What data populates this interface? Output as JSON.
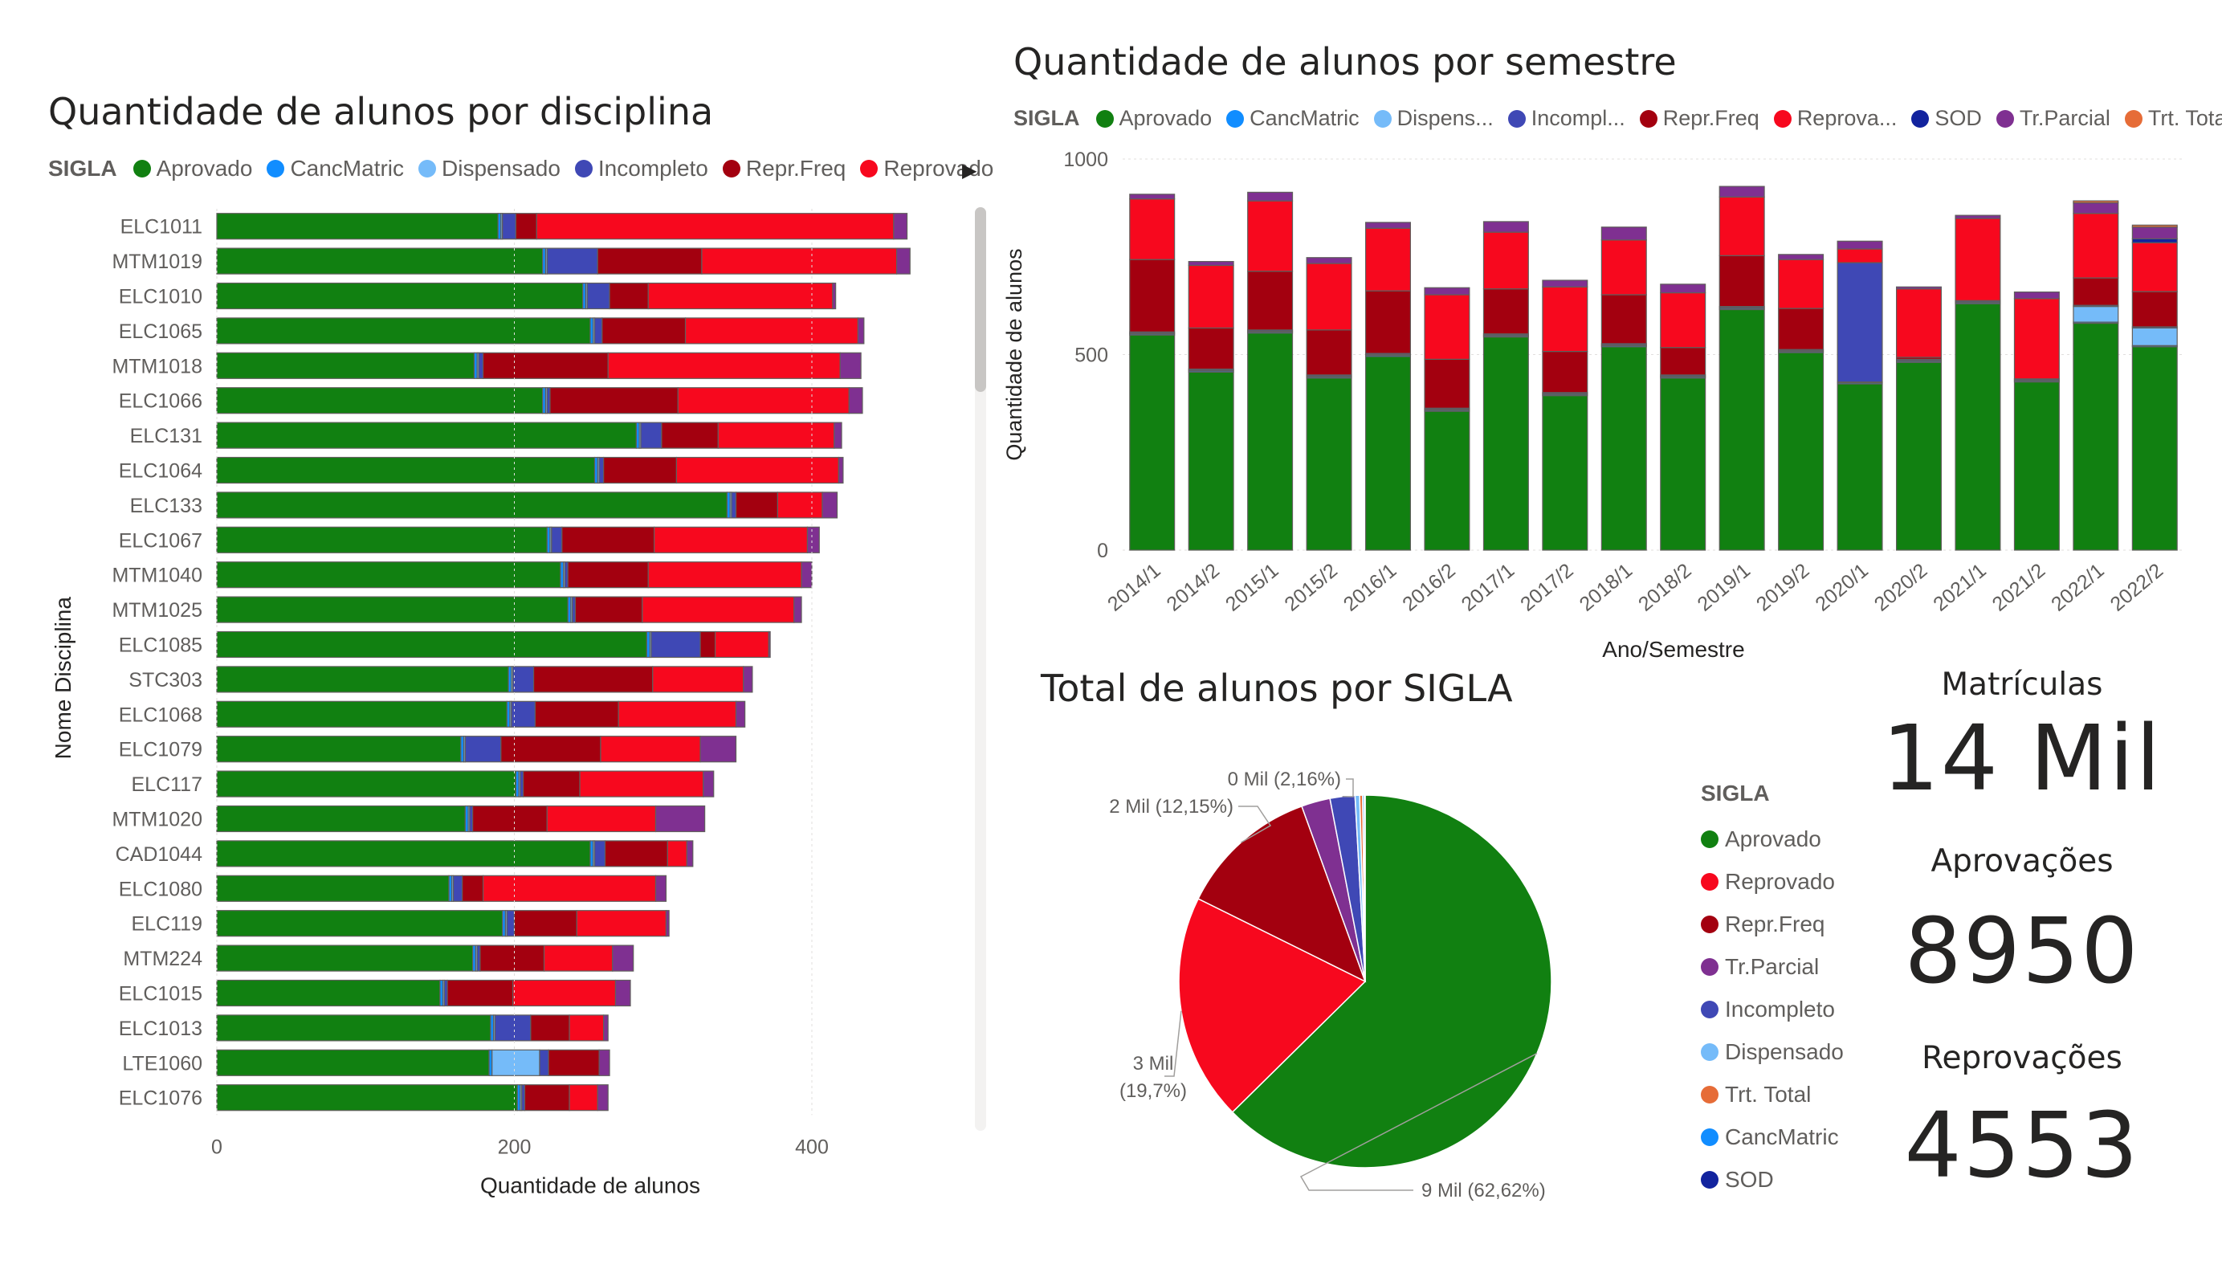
{
  "colors": {
    "Aprovado": "#118011",
    "CancMatric": "#118DFF",
    "Dispensado": "#75BBF9",
    "Incompleto": "#3F48B5",
    "Repr.Freq": "#A3000F",
    "Reprovado": "#F7081E",
    "SOD": "#12239E",
    "Tr.Parcial": "#7F3091",
    "Trt. Total": "#E66C37",
    "bar_border": "#605E5C"
  },
  "left_chart": {
    "title": "Quantidade de alunos por disciplina",
    "legend_title": "SIGLA",
    "legend": [
      {
        "key": "Aprovado",
        "label": "Aprovado"
      },
      {
        "key": "CancMatric",
        "label": "CancMatric"
      },
      {
        "key": "Dispensado",
        "label": "Dispensado"
      },
      {
        "key": "Incompleto",
        "label": "Incompleto"
      },
      {
        "key": "Repr.Freq",
        "label": "Repr.Freq"
      },
      {
        "key": "Reprovado",
        "label": "Reprovado"
      }
    ]
  },
  "top_chart": {
    "title": "Quantidade de alunos por semestre",
    "legend_title": "SIGLA",
    "legend": [
      {
        "key": "Aprovado",
        "label": "Aprovado"
      },
      {
        "key": "CancMatric",
        "label": "CancMatric"
      },
      {
        "key": "Dispensado",
        "label": "Dispens..."
      },
      {
        "key": "Incompleto",
        "label": "Incompl..."
      },
      {
        "key": "Repr.Freq",
        "label": "Repr.Freq"
      },
      {
        "key": "Reprovado",
        "label": "Reprova..."
      },
      {
        "key": "SOD",
        "label": "SOD"
      },
      {
        "key": "Tr.Parcial",
        "label": "Tr.Parcial"
      },
      {
        "key": "Trt. Total",
        "label": "Trt. Total"
      }
    ]
  },
  "pie_chart": {
    "title": "Total de alunos por SIGLA",
    "legend_title": "SIGLA",
    "legend": [
      {
        "key": "Aprovado",
        "label": "Aprovado"
      },
      {
        "key": "Reprovado",
        "label": "Reprovado"
      },
      {
        "key": "Repr.Freq",
        "label": "Repr.Freq"
      },
      {
        "key": "Tr.Parcial",
        "label": "Tr.Parcial"
      },
      {
        "key": "Incompleto",
        "label": "Incompleto"
      },
      {
        "key": "Dispensado",
        "label": "Dispensado"
      },
      {
        "key": "Trt. Total",
        "label": "Trt. Total"
      },
      {
        "key": "CancMatric",
        "label": "CancMatric"
      },
      {
        "key": "SOD",
        "label": "SOD"
      }
    ]
  },
  "kpis": [
    {
      "label": "Matrículas",
      "value": "14 Mil"
    },
    {
      "label": "Aprovações",
      "value": "8950"
    },
    {
      "label": "Reprovações",
      "value": "4553"
    }
  ],
  "chart_data": [
    {
      "type": "bar",
      "orientation": "horizontal",
      "stacked": true,
      "title": "Quantidade de alunos por disciplina",
      "xlabel": "Quantidade de alunos",
      "ylabel": "Nome Disciplina",
      "xlim": [
        0,
        470
      ],
      "xticks": [
        0,
        200,
        400
      ],
      "legend_position": "top",
      "categories": [
        "ELC1011",
        "MTM1019",
        "ELC1010",
        "ELC1065",
        "MTM1018",
        "ELC1066",
        "ELC131",
        "ELC1064",
        "ELC133",
        "ELC1067",
        "MTM1040",
        "MTM1025",
        "ELC1085",
        "STC303",
        "ELC1068",
        "ELC1079",
        "ELC117",
        "MTM1020",
        "CAD1044",
        "ELC1080",
        "ELC119",
        "MTM224",
        "ELC1015",
        "ELC1013",
        "LTE1060",
        "ELC1076"
      ],
      "series": [
        {
          "name": "Aprovado",
          "values": [
            189,
            219,
            246,
            251,
            173,
            219,
            282,
            254,
            343,
            222,
            231,
            236,
            289,
            196,
            195,
            164,
            201,
            167,
            251,
            156,
            192,
            172,
            150,
            184,
            183,
            202
          ]
        },
        {
          "name": "CancMatric",
          "values": [
            2,
            2,
            2,
            2,
            2,
            2,
            2,
            2,
            2,
            2,
            2,
            2,
            2,
            2,
            2,
            2,
            2,
            2,
            2,
            2,
            2,
            2,
            2,
            2,
            2,
            2
          ]
        },
        {
          "name": "Dispensado",
          "values": [
            1,
            1,
            1,
            1,
            1,
            1,
            1,
            1,
            1,
            1,
            1,
            1,
            1,
            1,
            1,
            1,
            1,
            1,
            1,
            1,
            1,
            1,
            1,
            1,
            32,
            1
          ]
        },
        {
          "name": "Incompleto",
          "values": [
            9,
            34,
            15,
            5,
            3,
            2,
            14,
            3,
            3,
            7,
            2,
            2,
            33,
            14,
            16,
            24,
            2,
            2,
            7,
            6,
            5,
            2,
            2,
            24,
            6,
            2
          ]
        },
        {
          "name": "Repr.Freq",
          "values": [
            14,
            70,
            26,
            56,
            84,
            86,
            38,
            49,
            28,
            62,
            54,
            45,
            10,
            80,
            56,
            67,
            38,
            50,
            42,
            14,
            42,
            43,
            44,
            26,
            34,
            30
          ]
        },
        {
          "name": "Reprovado",
          "values": [
            240,
            131,
            124,
            116,
            156,
            115,
            78,
            109,
            30,
            103,
            103,
            102,
            36,
            61,
            79,
            67,
            83,
            73,
            13,
            116,
            60,
            46,
            69,
            23,
            0,
            19
          ]
        },
        {
          "name": "Tr.Parcial",
          "values": [
            9,
            9,
            2,
            4,
            14,
            9,
            5,
            3,
            10,
            8,
            7,
            5,
            1,
            6,
            6,
            24,
            7,
            33,
            4,
            7,
            2,
            14,
            10,
            3,
            7,
            7
          ]
        }
      ]
    },
    {
      "type": "bar",
      "orientation": "vertical",
      "stacked": true,
      "title": "Quantidade de alunos por semestre",
      "xlabel": "Ano/Semestre",
      "ylabel": "Quantidade de alunos",
      "ylim": [
        0,
        1000
      ],
      "yticks": [
        0,
        500,
        1000
      ],
      "legend_position": "top",
      "categories": [
        "2014/1",
        "2014/2",
        "2015/1",
        "2015/2",
        "2016/1",
        "2016/2",
        "2017/1",
        "2017/2",
        "2018/1",
        "2018/2",
        "2019/1",
        "2019/2",
        "2020/1",
        "2020/2",
        "2021/1",
        "2021/2",
        "2022/1",
        "2022/2"
      ],
      "series": [
        {
          "name": "Aprovado",
          "values": [
            550,
            455,
            555,
            440,
            495,
            355,
            545,
            395,
            520,
            440,
            615,
            505,
            425,
            480,
            630,
            430,
            580,
            520
          ]
        },
        {
          "name": "CancMatric",
          "values": [
            3,
            3,
            3,
            3,
            3,
            3,
            3,
            3,
            3,
            3,
            3,
            3,
            3,
            3,
            3,
            3,
            3,
            3
          ]
        },
        {
          "name": "Dispensado",
          "values": [
            2,
            2,
            2,
            2,
            2,
            2,
            2,
            2,
            2,
            2,
            2,
            2,
            2,
            2,
            2,
            2,
            40,
            45
          ]
        },
        {
          "name": "Incompleto",
          "values": [
            3,
            3,
            3,
            3,
            3,
            3,
            3,
            3,
            3,
            3,
            3,
            3,
            305,
            3,
            3,
            3,
            3,
            3
          ]
        },
        {
          "name": "Repr.Freq",
          "values": [
            185,
            105,
            150,
            115,
            160,
            125,
            115,
            105,
            125,
            70,
            130,
            105,
            0,
            5,
            0,
            0,
            70,
            90
          ]
        },
        {
          "name": "Reprovado",
          "values": [
            155,
            160,
            180,
            170,
            160,
            165,
            145,
            165,
            140,
            140,
            150,
            125,
            35,
            175,
            210,
            205,
            165,
            125
          ]
        },
        {
          "name": "SOD",
          "values": [
            0,
            0,
            0,
            0,
            0,
            0,
            0,
            0,
            0,
            0,
            0,
            0,
            0,
            0,
            0,
            0,
            0,
            10
          ]
        },
        {
          "name": "Tr.Parcial",
          "values": [
            12,
            10,
            22,
            15,
            15,
            18,
            27,
            17,
            33,
            22,
            27,
            13,
            20,
            5,
            8,
            17,
            27,
            30
          ]
        },
        {
          "name": "Trt. Total",
          "values": [
            0,
            0,
            0,
            0,
            0,
            0,
            0,
            0,
            0,
            0,
            0,
            0,
            0,
            0,
            0,
            0,
            5,
            5
          ]
        }
      ]
    },
    {
      "type": "pie",
      "title": "Total de alunos por SIGLA",
      "legend_position": "right",
      "slices": [
        {
          "name": "Aprovado",
          "value": 62.62,
          "label": "9 Mil (62,62%)"
        },
        {
          "name": "Reprovado",
          "value": 19.7,
          "label": "3 Mil (19,7%)"
        },
        {
          "name": "Repr.Freq",
          "value": 12.15,
          "label": "2 Mil (12,15%)"
        },
        {
          "name": "Tr.Parcial",
          "value": 2.5
        },
        {
          "name": "Incompleto",
          "value": 2.16,
          "label": "0 Mil (2,16%)"
        },
        {
          "name": "Dispensado",
          "value": 0.4
        },
        {
          "name": "Trt. Total",
          "value": 0.25
        },
        {
          "name": "CancMatric",
          "value": 0.15
        },
        {
          "name": "SOD",
          "value": 0.07
        }
      ]
    }
  ]
}
